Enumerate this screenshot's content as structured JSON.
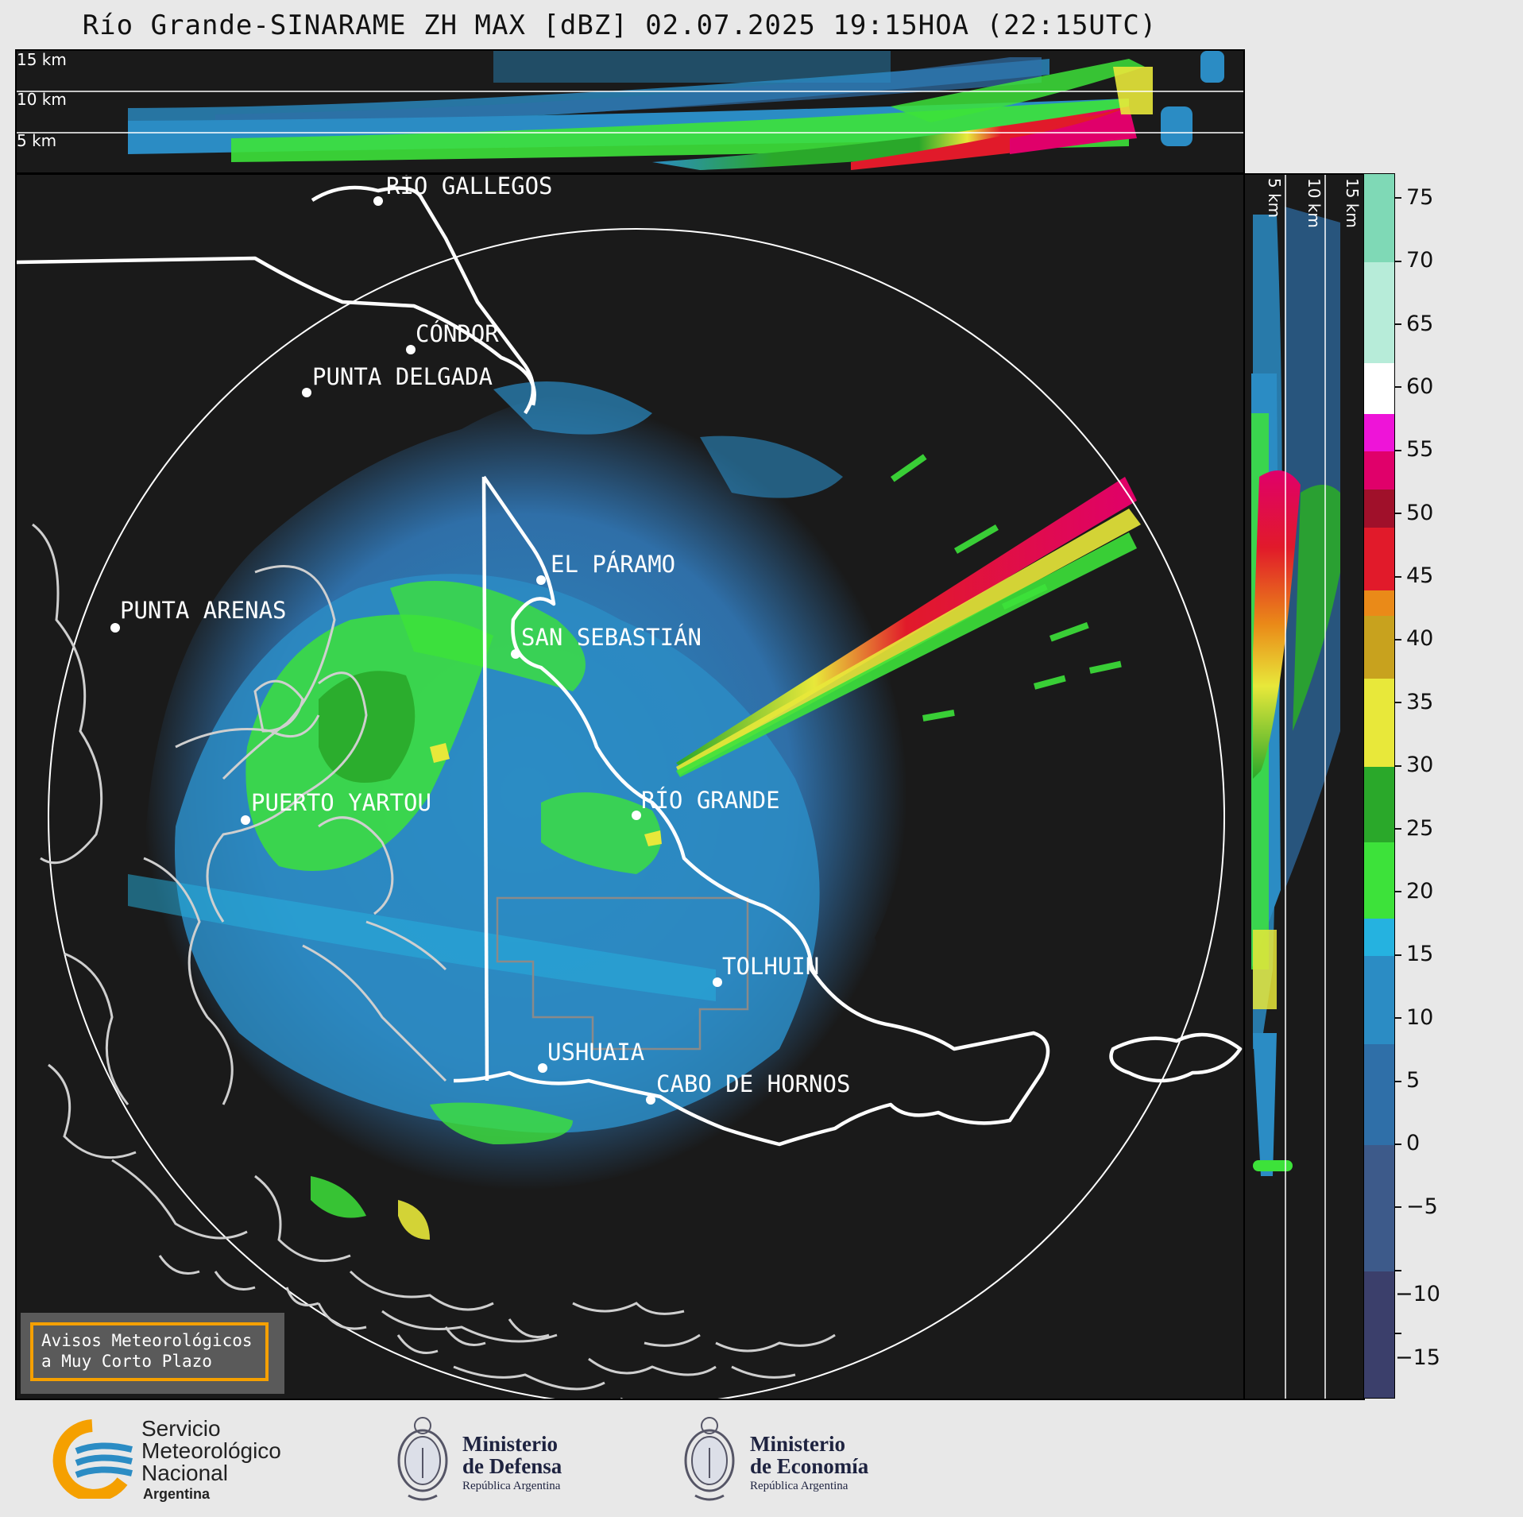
{
  "title": "Río Grande-SINARAME ZH MAX [dBZ] 02.07.2025 19:15HOA (22:15UTC)",
  "top_panel": {
    "km_labels": [
      "15 km",
      "10 km",
      "5 km"
    ]
  },
  "side_panel": {
    "km_labels": [
      "5 km",
      "10 km",
      "15 km"
    ]
  },
  "cities": [
    {
      "name": "RÍO GALLEGOS"
    },
    {
      "name": "CÓNDOR"
    },
    {
      "name": "PUNTA DELGADA"
    },
    {
      "name": "EL PÁRAMO"
    },
    {
      "name": "PUNTA ARENAS"
    },
    {
      "name": "SAN SEBASTIÁN"
    },
    {
      "name": "RÍO GRANDE"
    },
    {
      "name": "PUERTO YARTOU"
    },
    {
      "name": "TOLHUIN"
    },
    {
      "name": "USHUAIA"
    },
    {
      "name": "CABO DE HORNOS"
    }
  ],
  "colorbar": {
    "unit": "dBZ",
    "ticks": [
      "75",
      "70",
      "65",
      "60",
      "55",
      "50",
      "45",
      "40",
      "35",
      "30",
      "25",
      "20",
      "15",
      "10",
      "5",
      "0",
      "−5",
      "−10",
      "−15"
    ],
    "stops": [
      {
        "from": -20,
        "color": "#3b3f6b"
      },
      {
        "from": -10,
        "color": "#3d5a8a"
      },
      {
        "from": 0,
        "color": "#2f6fa8"
      },
      {
        "from": 8,
        "color": "#2b8cc4"
      },
      {
        "from": 15,
        "color": "#25b2e0"
      },
      {
        "from": 18,
        "color": "#3de23a"
      },
      {
        "from": 24,
        "color": "#2aa82a"
      },
      {
        "from": 30,
        "color": "#e8e83a"
      },
      {
        "from": 37,
        "color": "#c8a21e"
      },
      {
        "from": 42,
        "color": "#ea8a18"
      },
      {
        "from": 44,
        "color": "#e11a2a"
      },
      {
        "from": 49,
        "color": "#a0102a"
      },
      {
        "from": 52,
        "color": "#e0006a"
      },
      {
        "from": 55,
        "color": "#ee14d8"
      },
      {
        "from": 58,
        "color": "#ffffff"
      },
      {
        "from": 62,
        "color": "#b7ecd9"
      },
      {
        "from": 70,
        "color": "#7fd9b6"
      }
    ]
  },
  "warning_box": {
    "line1": "Avisos Meteorológicos",
    "line2": "a Muy Corto Plazo"
  },
  "logos": {
    "smn": {
      "line1": "Servicio",
      "line2": "Meteorológico",
      "line3": "Nacional",
      "line4": "Argentina"
    },
    "defensa": {
      "line1": "Ministerio",
      "line2": "de Defensa",
      "line3": "República Argentina"
    },
    "economia": {
      "line1": "Ministerio",
      "line2": "de Economía",
      "line3": "República Argentina"
    }
  },
  "colors": {
    "background": "#1a1a1a",
    "accent": "#f5a000",
    "coast": "#ffffff"
  }
}
